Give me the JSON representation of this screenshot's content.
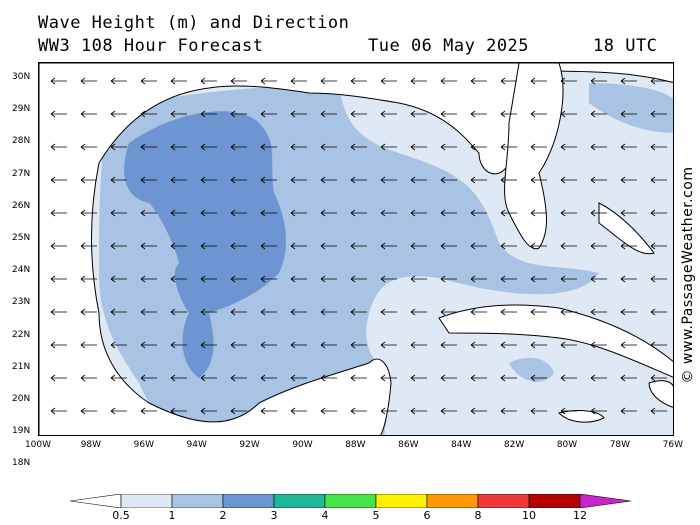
{
  "header": {
    "title": "Wave Height (m) and Direction",
    "subtitle": "WW3 108 Hour Forecast",
    "date": "Tue 06 May 2025",
    "time": "18 UTC"
  },
  "credit": "© www.PassageWeather.com",
  "axes": {
    "lat_labels": [
      "30N",
      "29N",
      "28N",
      "27N",
      "26N",
      "25N",
      "24N",
      "23N",
      "22N",
      "21N",
      "20N",
      "19N",
      "18N"
    ],
    "lon_labels": [
      "100W",
      "98W",
      "96W",
      "94W",
      "92W",
      "90W",
      "88W",
      "86W",
      "84W",
      "82W",
      "80W",
      "78W",
      "76W"
    ]
  },
  "legend": {
    "labels": [
      "0.5",
      "1",
      "2",
      "3",
      "4",
      "5",
      "6",
      "8",
      "10",
      "12"
    ],
    "colors": [
      "#dfe8f5",
      "#a9c3e4",
      "#6c95d2",
      "#1fb897",
      "#44e44a",
      "#fff000",
      "#ff9900",
      "#ee3a3a",
      "#b50000",
      "#cc22cc"
    ]
  },
  "map_colors": {
    "land": "#ffffff",
    "low": "#dfe8f5",
    "mid": "#a9c3e4",
    "high": "#6c95d2"
  }
}
